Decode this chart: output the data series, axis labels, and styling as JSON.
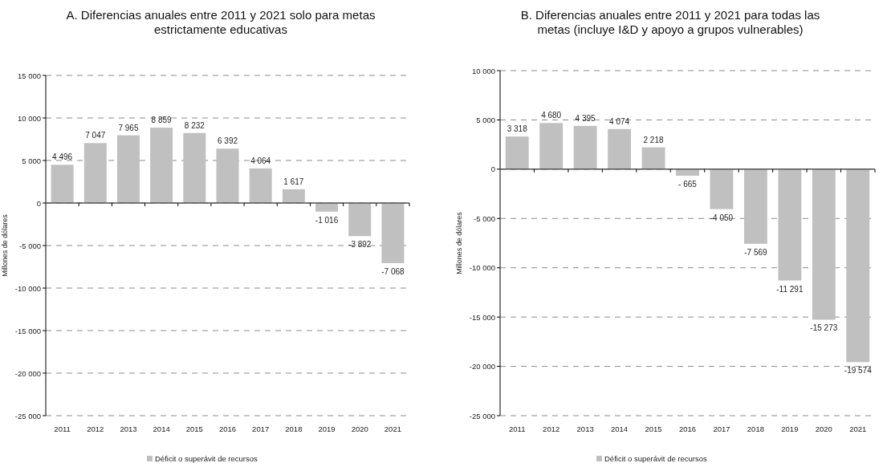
{
  "chart_data": [
    {
      "type": "bar",
      "title": "A. Diferencias anuales entre 2011 y 2021 solo para metas estrictamente educativas",
      "ylabel": "Millones de dólares",
      "categories": [
        "2011",
        "2012",
        "2013",
        "2014",
        "2015",
        "2016",
        "2017",
        "2018",
        "2019",
        "2020",
        "2021"
      ],
      "series": [
        {
          "name": "Déficit o superávit de recursos",
          "color": "#c0c0c0",
          "values": [
            4496,
            7047,
            7965,
            8859,
            8232,
            6392,
            4064,
            1617,
            -1016,
            -3892,
            -7068
          ],
          "value_labels": [
            "4 496",
            "7 047",
            "7 965",
            "8 859",
            "8 232",
            "6 392",
            "4 064",
            "1 617",
            "-1 016",
            "-3 892",
            "-7 068"
          ]
        }
      ],
      "ylim": [
        -25000,
        15000
      ],
      "yticks": [
        {
          "value": -25000,
          "label": "-25 000"
        },
        {
          "value": -20000,
          "label": "-20 000"
        },
        {
          "value": -15000,
          "label": "-15 000"
        },
        {
          "value": -10000,
          "label": "-10 000"
        },
        {
          "value": -5000,
          "label": "-5 000"
        },
        0,
        {
          "value": 5000,
          "label": "5 000"
        },
        {
          "value": 10000,
          "label": "10 000"
        },
        {
          "value": 15000,
          "label": "15 000"
        }
      ],
      "grid": "y",
      "legend": "bottom"
    },
    {
      "type": "bar",
      "title": "B. Diferencias anuales entre 2011 y 2021 para todas las metas (incluye I&D y apoyo a grupos vulnerables)",
      "ylabel": "Millones de dólares",
      "categories": [
        "2011",
        "2012",
        "2013",
        "2014",
        "2015",
        "2016",
        "2017",
        "2018",
        "2019",
        "2020",
        "2021"
      ],
      "series": [
        {
          "name": "Déficit o superávit de recursos",
          "color": "#c0c0c0",
          "values": [
            3318,
            4680,
            4395,
            4074,
            2218,
            -665,
            -4050,
            -7569,
            -11291,
            -15273,
            -19574
          ],
          "value_labels": [
            "3 318",
            "4 680",
            "4 395",
            "4 074",
            "2 218",
            "- 665",
            "-4 050",
            "-7 569",
            "-11 291",
            "-15 273",
            "-19 574"
          ]
        }
      ],
      "ylim": [
        -25000,
        10000
      ],
      "yticks": [
        {
          "value": -25000,
          "label": "-25 000"
        },
        {
          "value": -20000,
          "label": "-20 000"
        },
        {
          "value": -15000,
          "label": "-15 000"
        },
        {
          "value": -10000,
          "label": "-10 000"
        },
        {
          "value": -5000,
          "label": "-5 000"
        },
        0,
        {
          "value": 5000,
          "label": "5 000"
        },
        {
          "value": 10000,
          "label": "10 000"
        }
      ],
      "grid": "y",
      "legend": "bottom"
    }
  ]
}
